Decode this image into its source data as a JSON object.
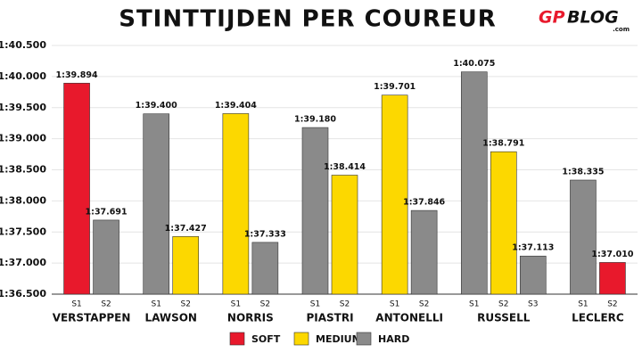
{
  "chart_data": {
    "type": "bar",
    "title": "STINTTIJDEN PER COUREUR",
    "logo": [
      "GP",
      "BLOG",
      ".com"
    ],
    "legend": [
      {
        "name": "SOFT",
        "color": "#e8192c"
      },
      {
        "name": "MEDIUM",
        "color": "#fcd800"
      },
      {
        "name": "HARD",
        "color": "#8a8a8a"
      }
    ],
    "groups": [
      {
        "name": "VERSTAPPEN",
        "stints": [
          "S1",
          "S2"
        ],
        "compounds": [
          0,
          2
        ],
        "values": [
          99.894,
          97.691
        ],
        "value_labels": [
          "1:39.894",
          "1:37.691"
        ]
      },
      {
        "name": "LAWSON",
        "stints": [
          "S1",
          "S2"
        ],
        "compounds": [
          2,
          1
        ],
        "values": [
          99.4,
          97.427
        ],
        "value_labels": [
          "1:39.400",
          "1:37.427"
        ]
      },
      {
        "name": "NORRIS",
        "stints": [
          "S1",
          "S2"
        ],
        "compounds": [
          1,
          2
        ],
        "values": [
          99.404,
          97.333
        ],
        "value_labels": [
          "1:39.404",
          "1:37.333"
        ]
      },
      {
        "name": "PIASTRI",
        "stints": [
          "S1",
          "S2"
        ],
        "compounds": [
          2,
          1
        ],
        "values": [
          99.18,
          98.414
        ],
        "value_labels": [
          "1:39.180",
          "1:38.414"
        ]
      },
      {
        "name": "ANTONELLI",
        "stints": [
          "S1",
          "S2"
        ],
        "compounds": [
          1,
          2
        ],
        "values": [
          99.701,
          97.846
        ],
        "value_labels": [
          "1:39.701",
          "1:37.846"
        ]
      },
      {
        "name": "RUSSELL",
        "stints": [
          "S1",
          "S2",
          "S3"
        ],
        "compounds": [
          2,
          1,
          2
        ],
        "values": [
          100.075,
          98.791,
          97.113
        ],
        "value_labels": [
          "1:40.075",
          "1:38.791",
          "1:37.113"
        ]
      },
      {
        "name": "LECLERC",
        "stints": [
          "S1",
          "S2"
        ],
        "compounds": [
          2,
          0
        ],
        "values": [
          98.335,
          97.01
        ],
        "value_labels": [
          "1:38.335",
          "1:37.010"
        ]
      }
    ],
    "ylim": [
      96.5,
      100.5
    ],
    "yticks": [
      {
        "value": 96.5,
        "label": "1:36.500"
      },
      {
        "value": 97.0,
        "label": "1:37.000"
      },
      {
        "value": 97.5,
        "label": "1:37.500"
      },
      {
        "value": 98.0,
        "label": "1:38.000"
      },
      {
        "value": 98.5,
        "label": "1:38.500"
      },
      {
        "value": 99.0,
        "label": "1:39.000"
      },
      {
        "value": 99.5,
        "label": "1:39.500"
      },
      {
        "value": 100.0,
        "label": "1:40.000"
      },
      {
        "value": 100.5,
        "label": "1:40.500"
      }
    ],
    "grid": true
  }
}
